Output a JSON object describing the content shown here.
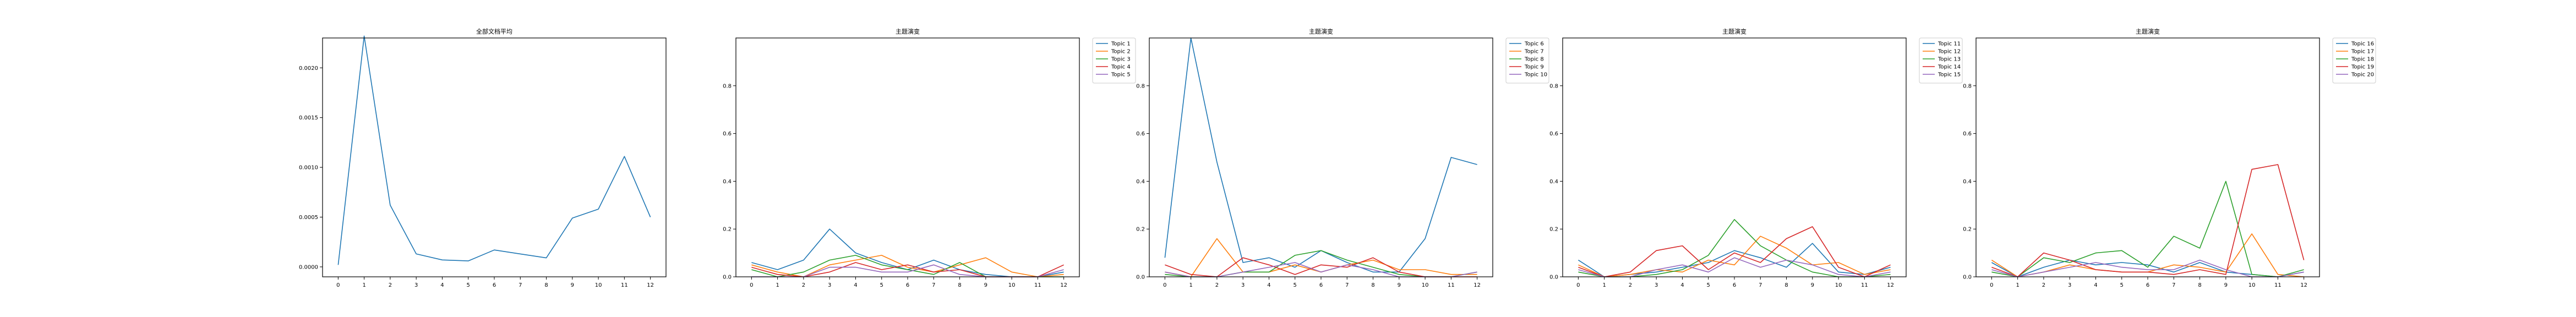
{
  "chart_data": [
    {
      "type": "line",
      "title": "全部文档平均",
      "xlabel": "",
      "ylabel": "",
      "x": [
        0,
        1,
        2,
        3,
        4,
        5,
        6,
        7,
        8,
        9,
        10,
        11,
        12
      ],
      "xlim": [
        -0.6,
        12.6
      ],
      "ylim": [
        -0.0001,
        0.0023
      ],
      "yticks": [
        0.0,
        0.0005,
        0.001,
        0.0015,
        0.002
      ],
      "ytick_labels": [
        "0.0000",
        "0.0005",
        "0.0010",
        "0.0015",
        "0.0020"
      ],
      "legend": false,
      "series": [
        {
          "values": [
            2e-05,
            0.00232,
            0.00062,
            0.00013,
            7e-05,
            6e-05,
            0.00017,
            0.00013,
            9e-05,
            0.00049,
            0.00058,
            0.00111,
            0.0005
          ],
          "color": "#1f77b4"
        }
      ]
    },
    {
      "type": "line",
      "title": "主题演变",
      "xlabel": "",
      "ylabel": "",
      "x": [
        0,
        1,
        2,
        3,
        4,
        5,
        6,
        7,
        8,
        9,
        10,
        11,
        12
      ],
      "xlim": [
        -0.6,
        12.6
      ],
      "ylim": [
        0,
        1.0
      ],
      "yticks": [
        0.0,
        0.2,
        0.4,
        0.6,
        0.8
      ],
      "ytick_labels": [
        "0.0",
        "0.2",
        "0.4",
        "0.6",
        "0.8"
      ],
      "legend": true,
      "legend_position": "outside-top-right",
      "series": [
        {
          "name": "Topic 1",
          "values": [
            0.06,
            0.03,
            0.07,
            0.2,
            0.1,
            0.06,
            0.03,
            0.07,
            0.03,
            0.01,
            0.0,
            0.0,
            0.02
          ],
          "color": "#1f77b4"
        },
        {
          "name": "Topic 2",
          "values": [
            0.05,
            0.02,
            0.0,
            0.05,
            0.07,
            0.09,
            0.04,
            0.02,
            0.05,
            0.08,
            0.02,
            0.0,
            0.01
          ],
          "color": "#ff7f0e"
        },
        {
          "name": "Topic 3",
          "values": [
            0.03,
            0.0,
            0.02,
            0.07,
            0.09,
            0.05,
            0.03,
            0.01,
            0.06,
            0.0,
            0.0,
            0.0,
            0.0
          ],
          "color": "#2ca02c"
        },
        {
          "name": "Topic 4",
          "values": [
            0.04,
            0.01,
            0.0,
            0.02,
            0.06,
            0.03,
            0.05,
            0.02,
            0.03,
            0.0,
            0.0,
            0.0,
            0.05
          ],
          "color": "#d62728"
        },
        {
          "name": "Topic 5",
          "values": [
            0.0,
            0.0,
            0.0,
            0.04,
            0.04,
            0.02,
            0.02,
            0.05,
            0.01,
            0.0,
            0.0,
            0.0,
            0.03
          ],
          "color": "#9467bd"
        }
      ]
    },
    {
      "type": "line",
      "title": "主题演变",
      "xlabel": "",
      "ylabel": "",
      "x": [
        0,
        1,
        2,
        3,
        4,
        5,
        6,
        7,
        8,
        9,
        10,
        11,
        12
      ],
      "xlim": [
        -0.6,
        12.6
      ],
      "ylim": [
        0,
        1.0
      ],
      "yticks": [
        0.0,
        0.2,
        0.4,
        0.6,
        0.8
      ],
      "ytick_labels": [
        "0.0",
        "0.2",
        "0.4",
        "0.6",
        "0.8"
      ],
      "legend": true,
      "legend_position": "outside-top-right",
      "series": [
        {
          "name": "Topic 6",
          "values": [
            0.08,
            1.0,
            0.48,
            0.06,
            0.08,
            0.04,
            0.11,
            0.06,
            0.02,
            0.02,
            0.16,
            0.5,
            0.47
          ],
          "color": "#1f77b4"
        },
        {
          "name": "Topic 7",
          "values": [
            0.02,
            0.0,
            0.16,
            0.02,
            0.02,
            0.05,
            0.02,
            0.05,
            0.07,
            0.03,
            0.03,
            0.01,
            0.01
          ],
          "color": "#ff7f0e"
        },
        {
          "name": "Topic 8",
          "values": [
            0.01,
            0.0,
            0.0,
            0.02,
            0.02,
            0.09,
            0.11,
            0.07,
            0.04,
            0.01,
            0.0,
            0.0,
            0.02
          ],
          "color": "#2ca02c"
        },
        {
          "name": "Topic 9",
          "values": [
            0.05,
            0.01,
            0.0,
            0.08,
            0.05,
            0.01,
            0.05,
            0.04,
            0.08,
            0.02,
            0.0,
            0.0,
            0.0
          ],
          "color": "#d62728"
        },
        {
          "name": "Topic 10",
          "values": [
            0.02,
            0.0,
            0.0,
            0.02,
            0.04,
            0.06,
            0.02,
            0.05,
            0.03,
            0.0,
            0.0,
            0.0,
            0.02
          ],
          "color": "#9467bd"
        }
      ]
    },
    {
      "type": "line",
      "title": "主题演变",
      "xlabel": "",
      "ylabel": "",
      "x": [
        0,
        1,
        2,
        3,
        4,
        5,
        6,
        7,
        8,
        9,
        10,
        11,
        12
      ],
      "xlim": [
        -0.6,
        12.6
      ],
      "ylim": [
        0,
        1.0
      ],
      "yticks": [
        0.0,
        0.2,
        0.4,
        0.6,
        0.8
      ],
      "ytick_labels": [
        "0.0",
        "0.2",
        "0.4",
        "0.6",
        "0.8"
      ],
      "legend": true,
      "legend_position": "outside-top-right",
      "series": [
        {
          "name": "Topic 11",
          "values": [
            0.07,
            0.0,
            0.01,
            0.02,
            0.04,
            0.06,
            0.11,
            0.08,
            0.04,
            0.14,
            0.02,
            0.01,
            0.04
          ],
          "color": "#1f77b4"
        },
        {
          "name": "Topic 12",
          "values": [
            0.05,
            0.0,
            0.01,
            0.03,
            0.02,
            0.07,
            0.05,
            0.17,
            0.12,
            0.05,
            0.06,
            0.01,
            0.03
          ],
          "color": "#ff7f0e"
        },
        {
          "name": "Topic 13",
          "values": [
            0.02,
            0.0,
            0.0,
            0.01,
            0.03,
            0.09,
            0.24,
            0.13,
            0.07,
            0.02,
            0.0,
            0.0,
            0.01
          ],
          "color": "#2ca02c"
        },
        {
          "name": "Topic 14",
          "values": [
            0.04,
            0.0,
            0.02,
            0.11,
            0.13,
            0.03,
            0.1,
            0.06,
            0.16,
            0.21,
            0.04,
            0.0,
            0.05
          ],
          "color": "#d62728"
        },
        {
          "name": "Topic 15",
          "values": [
            0.03,
            0.0,
            0.0,
            0.03,
            0.05,
            0.02,
            0.08,
            0.04,
            0.07,
            0.05,
            0.01,
            0.0,
            0.02
          ],
          "color": "#9467bd"
        }
      ]
    },
    {
      "type": "line",
      "title": "主题演变",
      "xlabel": "",
      "ylabel": "",
      "x": [
        0,
        1,
        2,
        3,
        4,
        5,
        6,
        7,
        8,
        9,
        10,
        11,
        12
      ],
      "xlim": [
        -0.6,
        12.6
      ],
      "ylim": [
        0,
        1.0
      ],
      "yticks": [
        0.0,
        0.2,
        0.4,
        0.6,
        0.8
      ],
      "ytick_labels": [
        "0.0",
        "0.2",
        "0.4",
        "0.6",
        "0.8"
      ],
      "legend": true,
      "legend_position": "outside-top-right",
      "series": [
        {
          "name": "Topic 16",
          "values": [
            0.06,
            0.0,
            0.04,
            0.07,
            0.05,
            0.06,
            0.05,
            0.02,
            0.06,
            0.02,
            0.01,
            0.0,
            0.02
          ],
          "color": "#1f77b4"
        },
        {
          "name": "Topic 17",
          "values": [
            0.07,
            0.0,
            0.02,
            0.05,
            0.03,
            0.02,
            0.02,
            0.05,
            0.04,
            0.02,
            0.18,
            0.01,
            0.0
          ],
          "color": "#ff7f0e"
        },
        {
          "name": "Topic 18",
          "values": [
            0.02,
            0.0,
            0.08,
            0.06,
            0.1,
            0.11,
            0.04,
            0.17,
            0.12,
            0.4,
            0.01,
            0.0,
            0.03
          ],
          "color": "#2ca02c"
        },
        {
          "name": "Topic 19",
          "values": [
            0.04,
            0.0,
            0.1,
            0.07,
            0.03,
            0.02,
            0.02,
            0.01,
            0.03,
            0.01,
            0.45,
            0.47,
            0.07
          ],
          "color": "#d62728"
        },
        {
          "name": "Topic 20",
          "values": [
            0.03,
            0.0,
            0.02,
            0.04,
            0.06,
            0.04,
            0.03,
            0.03,
            0.07,
            0.03,
            0.0,
            0.0,
            0.02
          ],
          "color": "#9467bd"
        }
      ]
    }
  ]
}
